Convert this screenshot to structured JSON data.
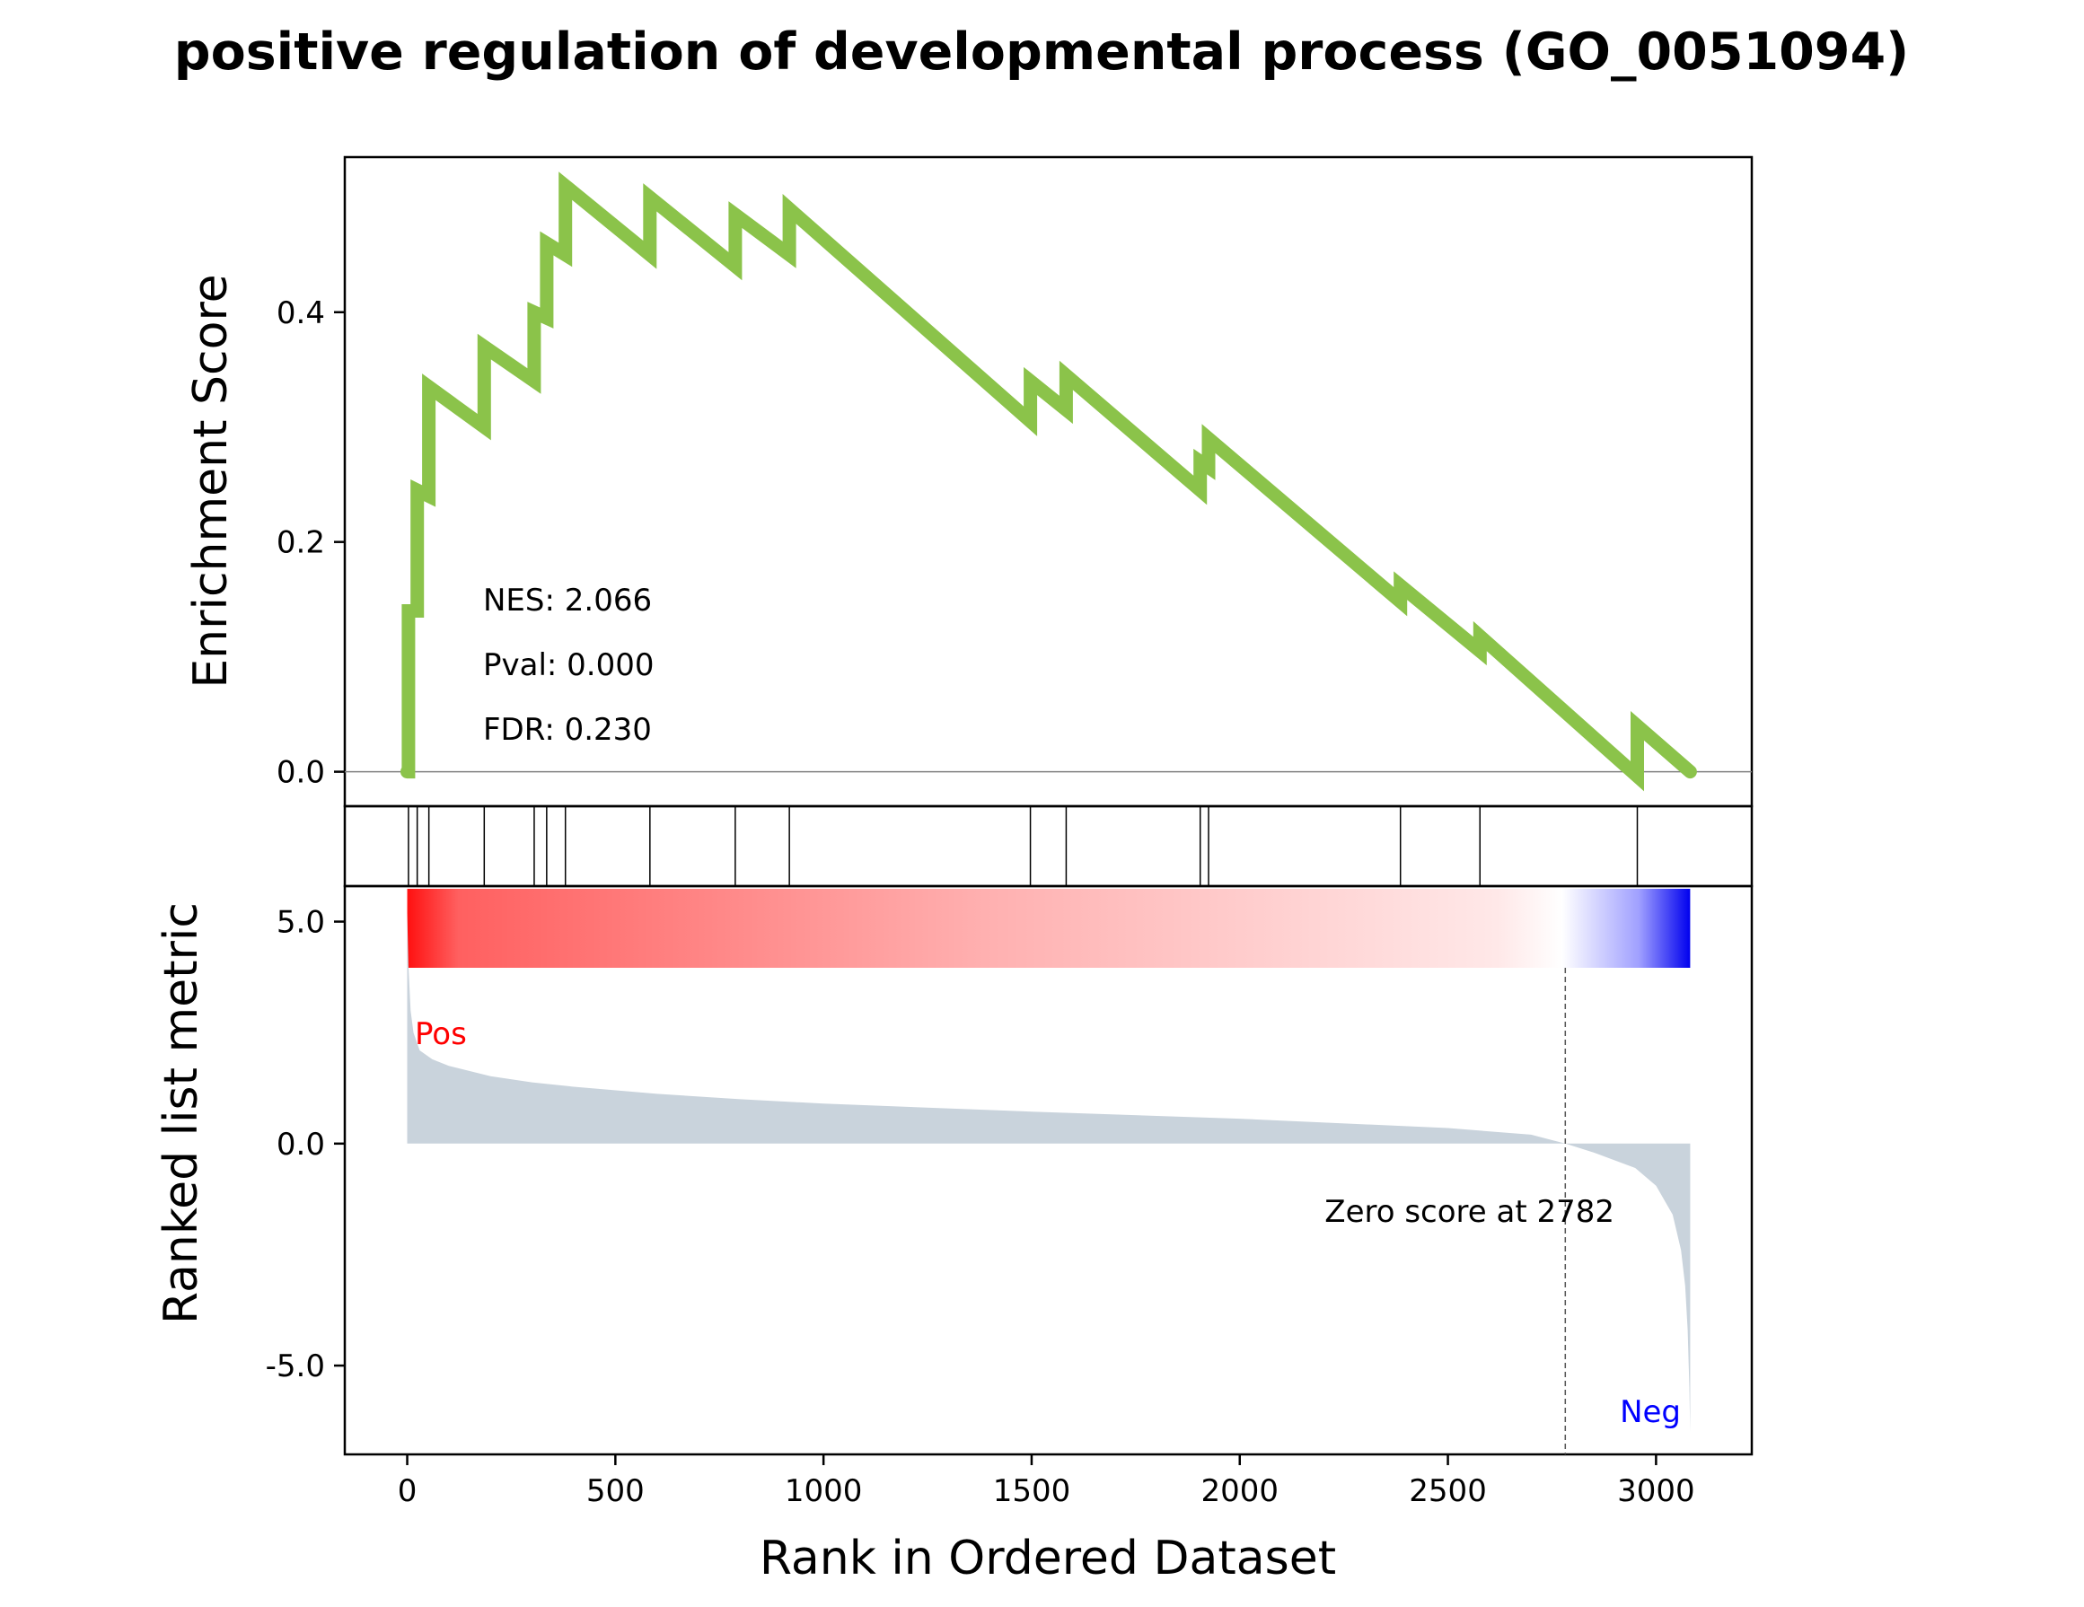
{
  "chart_data": {
    "type": "line",
    "title": "positive regulation of developmental process (GO_0051094)",
    "xlabel": "Rank in Ordered Dataset",
    "xlim": [
      -150,
      3230
    ],
    "x_ticks": [
      "0",
      "500",
      "1000",
      "1500",
      "2000",
      "2500",
      "3000"
    ],
    "x_tick_values": [
      0,
      500,
      1000,
      1500,
      2000,
      2500,
      3000
    ],
    "es_panel": {
      "ylabel": "Enrichment Score",
      "ylim": [
        -0.03,
        0.535
      ],
      "y_ticks": [
        "0.0",
        "0.2",
        "0.4"
      ],
      "y_tick_values": [
        0.0,
        0.2,
        0.4
      ],
      "line_color": "#8bc34a",
      "stats": [
        "NES: 2.066",
        "Pval: 0.000",
        "FDR: 0.230"
      ],
      "hits": [
        3,
        24,
        52,
        185,
        305,
        335,
        380,
        583,
        788,
        918,
        1497,
        1583,
        1905,
        1925,
        2386,
        2577,
        2955
      ],
      "points": [
        [
          0,
          0.0
        ],
        [
          3,
          0.0
        ],
        [
          3,
          0.14
        ],
        [
          24,
          0.14
        ],
        [
          24,
          0.245
        ],
        [
          52,
          0.24
        ],
        [
          52,
          0.335
        ],
        [
          185,
          0.3
        ],
        [
          185,
          0.37
        ],
        [
          305,
          0.34
        ],
        [
          305,
          0.4
        ],
        [
          335,
          0.395
        ],
        [
          335,
          0.46
        ],
        [
          380,
          0.45
        ],
        [
          380,
          0.51
        ],
        [
          583,
          0.45
        ],
        [
          583,
          0.5
        ],
        [
          788,
          0.44
        ],
        [
          788,
          0.485
        ],
        [
          918,
          0.45
        ],
        [
          918,
          0.49
        ],
        [
          1497,
          0.305
        ],
        [
          1497,
          0.34
        ],
        [
          1583,
          0.315
        ],
        [
          1583,
          0.345
        ],
        [
          1905,
          0.245
        ],
        [
          1905,
          0.27
        ],
        [
          1925,
          0.265
        ],
        [
          1925,
          0.29
        ],
        [
          2386,
          0.148
        ],
        [
          2386,
          0.162
        ],
        [
          2577,
          0.105
        ],
        [
          2577,
          0.118
        ],
        [
          2955,
          -0.004
        ],
        [
          2955,
          0.04
        ],
        [
          3082,
          0.0
        ]
      ]
    },
    "ranked_panel": {
      "ylabel": "Ranked list metric",
      "ylim": [
        -7.0,
        5.8
      ],
      "y_ticks": [
        "5.0",
        "0.0",
        "-5.0"
      ],
      "y_tick_values": [
        5.0,
        0.0,
        -5.0
      ],
      "fill_color": "#c9d3dc",
      "points": [
        [
          0,
          5.2
        ],
        [
          3,
          4.0
        ],
        [
          8,
          3.0
        ],
        [
          15,
          2.5
        ],
        [
          30,
          2.1
        ],
        [
          60,
          1.9
        ],
        [
          100,
          1.75
        ],
        [
          200,
          1.52
        ],
        [
          300,
          1.38
        ],
        [
          400,
          1.28
        ],
        [
          600,
          1.12
        ],
        [
          800,
          1.0
        ],
        [
          1000,
          0.9
        ],
        [
          1500,
          0.72
        ],
        [
          2000,
          0.56
        ],
        [
          2500,
          0.35
        ],
        [
          2700,
          0.2
        ],
        [
          2782,
          0.0
        ],
        [
          2850,
          -0.2
        ],
        [
          2950,
          -0.55
        ],
        [
          3000,
          -0.95
        ],
        [
          3040,
          -1.6
        ],
        [
          3060,
          -2.4
        ],
        [
          3070,
          -3.2
        ],
        [
          3076,
          -4.2
        ],
        [
          3080,
          -5.5
        ],
        [
          3082,
          -6.5
        ]
      ],
      "pos_label": "Pos",
      "neg_label": "Neg",
      "pos_color": "#ff0000",
      "neg_color": "#0000ff",
      "zero_score_text": "Zero score at 2782",
      "zero_score_rank": 2782
    }
  }
}
